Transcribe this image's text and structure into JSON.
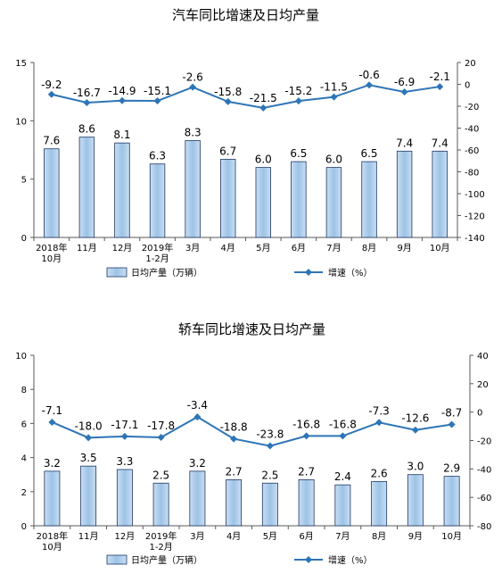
{
  "chart_data": [
    {
      "type": "bar+line",
      "title": "汽车同比增速及日均产量",
      "categories": [
        "2018年\n10月",
        "11月",
        "12月",
        "2019年\n1-2月",
        "3月",
        "4月",
        "5月",
        "6月",
        "7月",
        "8月",
        "9月",
        "10月"
      ],
      "series": [
        {
          "name": "日均产量（万辆）",
          "type": "bar",
          "axis": "left",
          "values": [
            7.6,
            8.6,
            8.1,
            6.3,
            8.3,
            6.7,
            6.0,
            6.5,
            6.0,
            6.5,
            7.4,
            7.4
          ]
        },
        {
          "name": "增速（%）",
          "type": "line",
          "axis": "right",
          "values": [
            -9.2,
            -16.7,
            -14.9,
            -15.1,
            -2.6,
            -15.8,
            -21.5,
            -15.2,
            -11.5,
            -0.6,
            -6.9,
            -2.1
          ]
        }
      ],
      "left_axis": {
        "ylim": [
          0,
          15
        ],
        "ticks": [
          0,
          5,
          10,
          15
        ]
      },
      "right_axis": {
        "ylim": [
          -140,
          20
        ],
        "ticks": [
          20,
          0,
          -20,
          -40,
          -60,
          -80,
          -100,
          -120,
          -140
        ]
      },
      "legend_position": "bottom",
      "grid": false
    },
    {
      "type": "bar+line",
      "title": "轿车同比增速及日均产量",
      "categories": [
        "2018年\n10月",
        "11月",
        "12月",
        "2019年\n1-2月",
        "3月",
        "4月",
        "5月",
        "6月",
        "7月",
        "8月",
        "9月",
        "10月"
      ],
      "series": [
        {
          "name": "日均产量（万辆）",
          "type": "bar",
          "axis": "left",
          "values": [
            3.2,
            3.5,
            3.3,
            2.5,
            3.2,
            2.7,
            2.5,
            2.7,
            2.4,
            2.6,
            3.0,
            2.9
          ]
        },
        {
          "name": "增速（%）",
          "type": "line",
          "axis": "right",
          "values": [
            -7.1,
            -18.0,
            -17.1,
            -17.8,
            -3.4,
            -18.8,
            -23.8,
            -16.8,
            -16.8,
            -7.3,
            -12.6,
            -8.7
          ]
        }
      ],
      "left_axis": {
        "ylim": [
          0,
          10
        ],
        "ticks": [
          0,
          2,
          4,
          6,
          8,
          10
        ]
      },
      "right_axis": {
        "ylim": [
          -80,
          40
        ],
        "ticks": [
          40,
          20,
          0,
          -20,
          -40,
          -60,
          -80
        ]
      },
      "legend_position": "bottom",
      "grid": false
    }
  ],
  "colors": {
    "bar_fill": "#9dc3e6",
    "bar_stroke": "#1f3864",
    "line": "#2e75b6",
    "axis": "#595959",
    "text": "#000000"
  }
}
